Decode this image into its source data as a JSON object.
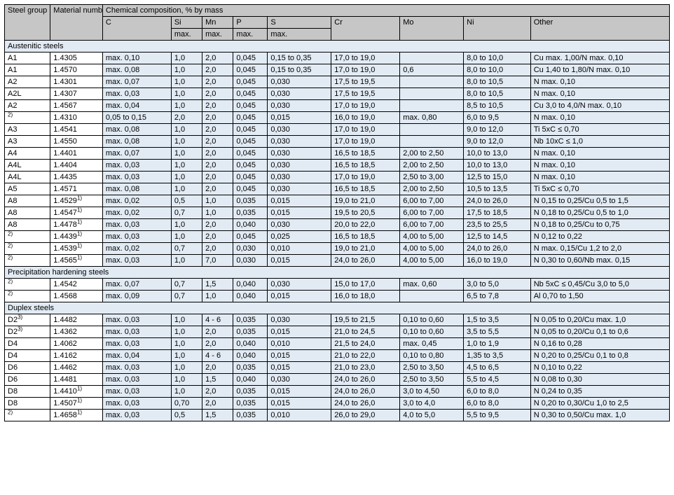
{
  "colors": {
    "header_bg": "#c6c6c6",
    "shade_bg": "#e2ebf4",
    "border": "#000000",
    "text": "#000000"
  },
  "header": {
    "steel_group": "Steel group",
    "material_number": "Material number",
    "chem_span": "Chemical composition, % by mass",
    "cols": [
      "C",
      "Si",
      "Mn",
      "P",
      "S",
      "Cr",
      "Mo",
      "Ni",
      "Other"
    ],
    "max": "max."
  },
  "sections": [
    {
      "title": "Austenitic steels",
      "rows": [
        {
          "grp": "A1",
          "grp_sup": "",
          "mat": "1.4305",
          "mat_sup": "",
          "c": "max. 0,10",
          "si": "1,0",
          "mn": "2,0",
          "p": "0,045",
          "s": "0,15 to 0,35",
          "cr": "17,0 to 19,0",
          "mo": "",
          "ni": "8,0 to 10,0",
          "other": "Cu max. 1,00/N max. 0,10"
        },
        {
          "grp": "A1",
          "grp_sup": "",
          "mat": "1.4570",
          "mat_sup": "",
          "c": "max. 0,08",
          "si": "1,0",
          "mn": "2,0",
          "p": "0,045",
          "s": "0,15 to 0,35",
          "cr": "17,0 to 19,0",
          "mo": "0,6",
          "ni": "8,0 to 10,0",
          "other": "Cu 1,40 to 1,80/N max. 0,10"
        },
        {
          "grp": "A2",
          "grp_sup": "",
          "mat": "1.4301",
          "mat_sup": "",
          "c": "max. 0,07",
          "si": "1,0",
          "mn": "2,0",
          "p": "0,045",
          "s": "0,030",
          "cr": "17,5 to 19,5",
          "mo": "",
          "ni": "8,0 to 10,5",
          "other": "N max. 0,10"
        },
        {
          "grp": "A2L",
          "grp_sup": "",
          "mat": "1.4307",
          "mat_sup": "",
          "c": "max. 0,03",
          "si": "1,0",
          "mn": "2,0",
          "p": "0,045",
          "s": "0,030",
          "cr": "17,5 to 19,5",
          "mo": "",
          "ni": "8,0 to 10,5",
          "other": "N max. 0,10"
        },
        {
          "grp": "A2",
          "grp_sup": "",
          "mat": "1.4567",
          "mat_sup": "",
          "c": "max. 0,04",
          "si": "1,0",
          "mn": "2,0",
          "p": "0,045",
          "s": "0,030",
          "cr": "17,0 to 19,0",
          "mo": "",
          "ni": "8,5 to 10,5",
          "other": "Cu 3,0 to 4,0/N max. 0,10"
        },
        {
          "grp": "",
          "grp_sup": "2)",
          "mat": "1.4310",
          "mat_sup": "",
          "c": "0,05 to 0,15",
          "si": "2,0",
          "mn": "2,0",
          "p": "0,045",
          "s": "0,015",
          "cr": "16,0 to 19,0",
          "mo": "max. 0,80",
          "ni": "6,0 to 9,5",
          "other": "N max. 0,10"
        },
        {
          "grp": "A3",
          "grp_sup": "",
          "mat": "1.4541",
          "mat_sup": "",
          "c": "max. 0,08",
          "si": "1,0",
          "mn": "2,0",
          "p": "0,045",
          "s": "0,030",
          "cr": "17,0 to 19,0",
          "mo": "",
          "ni": "9,0 to 12,0",
          "other": "Ti 5xC ≤ 0,70"
        },
        {
          "grp": "A3",
          "grp_sup": "",
          "mat": "1.4550",
          "mat_sup": "",
          "c": "max. 0,08",
          "si": "1,0",
          "mn": "2,0",
          "p": "0,045",
          "s": "0,030",
          "cr": "17,0 to 19,0",
          "mo": "",
          "ni": "9,0 to 12,0",
          "other": "Nb 10xC ≤ 1,0"
        },
        {
          "grp": "A4",
          "grp_sup": "",
          "mat": "1.4401",
          "mat_sup": "",
          "c": "max. 0,07",
          "si": "1,0",
          "mn": "2,0",
          "p": "0,045",
          "s": "0,030",
          "cr": "16,5 to 18,5",
          "mo": "2,00 to 2,50",
          "ni": "10,0 to 13,0",
          "other": "N max. 0,10"
        },
        {
          "grp": "A4L",
          "grp_sup": "",
          "mat": "1.4404",
          "mat_sup": "",
          "c": "max. 0,03",
          "si": "1,0",
          "mn": "2,0",
          "p": "0,045",
          "s": "0,030",
          "cr": "16,5 to 18,5",
          "mo": "2,00 to 2,50",
          "ni": "10,0 to 13,0",
          "other": "N max. 0,10"
        },
        {
          "grp": "A4L",
          "grp_sup": "",
          "mat": "1.4435",
          "mat_sup": "",
          "c": "max. 0,03",
          "si": "1,0",
          "mn": "2,0",
          "p": "0,045",
          "s": "0,030",
          "cr": "17,0 to 19,0",
          "mo": "2,50 to 3,00",
          "ni": "12,5 to 15,0",
          "other": "N max. 0,10"
        },
        {
          "grp": "A5",
          "grp_sup": "",
          "mat": "1.4571",
          "mat_sup": "",
          "c": "max. 0,08",
          "si": "1,0",
          "mn": "2,0",
          "p": "0,045",
          "s": "0,030",
          "cr": "16,5 to 18,5",
          "mo": "2,00 to 2,50",
          "ni": "10,5 to 13,5",
          "other": "Ti 5xC ≤ 0,70"
        },
        {
          "grp": "A8",
          "grp_sup": "",
          "mat": "1.4529",
          "mat_sup": "1)",
          "c": "max. 0,02",
          "si": "0,5",
          "mn": "1,0",
          "p": "0,035",
          "s": "0,015",
          "cr": "19,0 to 21,0",
          "mo": "6,00 to 7,00",
          "ni": "24,0 to 26,0",
          "other": "N 0,15 to 0,25/Cu 0,5 to 1,5"
        },
        {
          "grp": "A8",
          "grp_sup": "",
          "mat": "1.4547",
          "mat_sup": "1)",
          "c": "max. 0,02",
          "si": "0,7",
          "mn": "1,0",
          "p": "0,035",
          "s": "0,015",
          "cr": "19,5 to 20,5",
          "mo": "6,00 to 7,00",
          "ni": "17,5 to 18,5",
          "other": "N 0,18 to 0,25/Cu 0,5 to 1,0"
        },
        {
          "grp": "A8",
          "grp_sup": "",
          "mat": "1.4478",
          "mat_sup": "1)",
          "c": "max. 0,03",
          "si": "1,0",
          "mn": "2,0",
          "p": "0,040",
          "s": "0,030",
          "cr": "20,0 to 22,0",
          "mo": "6,00 to 7,00",
          "ni": "23,5 to 25,5",
          "other": "N 0,18 to 0,25/Cu to 0,75"
        },
        {
          "grp": "",
          "grp_sup": "2)",
          "mat": "1.4439",
          "mat_sup": "1)",
          "c": "max. 0,03",
          "si": "1,0",
          "mn": "2,0",
          "p": "0,045",
          "s": "0,025",
          "cr": "16,5 to 18,5",
          "mo": "4,00 to 5,00",
          "ni": "12,5 to 14,5",
          "other": "N 0,12 to 0,22"
        },
        {
          "grp": "",
          "grp_sup": "2)",
          "mat": "1.4539",
          "mat_sup": "1)",
          "c": "max. 0,02",
          "si": "0,7",
          "mn": "2,0",
          "p": "0,030",
          "s": "0,010",
          "cr": "19,0 to 21,0",
          "mo": "4,00 to 5,00",
          "ni": "24,0 to 26,0",
          "other": "N max. 0,15/Cu 1,2 to 2,0"
        },
        {
          "grp": "",
          "grp_sup": "2)",
          "mat": "1.4565",
          "mat_sup": "1)",
          "c": "max. 0,03",
          "si": "1,0",
          "mn": "7,0",
          "p": "0,030",
          "s": "0,015",
          "cr": "24,0 to 26,0",
          "mo": "4,00 to 5,00",
          "ni": "16,0 to 19,0",
          "other": "N 0,30 to 0,60/Nb max. 0,15"
        }
      ]
    },
    {
      "title": "Precipitation hardening steels",
      "rows": [
        {
          "grp": "",
          "grp_sup": "2)",
          "mat": "1.4542",
          "mat_sup": "",
          "c": "max. 0,07",
          "si": "0,7",
          "mn": "1,5",
          "p": "0,040",
          "s": "0,030",
          "cr": "15,0 to 17,0",
          "mo": "max. 0,60",
          "ni": "3,0 to 5,0",
          "other": "Nb 5xC ≤ 0,45/Cu 3,0 to 5,0"
        },
        {
          "grp": "",
          "grp_sup": "2)",
          "mat": "1.4568",
          "mat_sup": "",
          "c": "max. 0,09",
          "si": "0,7",
          "mn": "1,0",
          "p": "0,040",
          "s": "0,015",
          "cr": "16,0 to 18,0",
          "mo": "",
          "ni": "6,5 to 7,8",
          "other": "Al 0,70 to 1,50"
        }
      ]
    },
    {
      "title": "Duplex steels",
      "rows": [
        {
          "grp": "D2",
          "grp_sup": "3)",
          "mat": "1.4482",
          "mat_sup": "",
          "c": "max. 0,03",
          "si": "1,0",
          "mn": "4 - 6",
          "p": "0,035",
          "s": "0,030",
          "cr": "19,5 to 21,5",
          "mo": "0,10 to 0,60",
          "ni": "1,5 to 3,5",
          "other": "N 0,05 to 0,20/Cu max. 1,0"
        },
        {
          "grp": "D2",
          "grp_sup": "3)",
          "mat": "1.4362",
          "mat_sup": "",
          "c": "max. 0,03",
          "si": "1,0",
          "mn": "2,0",
          "p": "0,035",
          "s": "0,015",
          "cr": "21,0 to 24,5",
          "mo": "0,10 to 0,60",
          "ni": "3,5 to 5,5",
          "other": "N 0,05 to 0,20/Cu 0,1 to 0,6"
        },
        {
          "grp": "D4",
          "grp_sup": "",
          "mat": "1.4062",
          "mat_sup": "",
          "c": "max. 0,03",
          "si": "1,0",
          "mn": "2,0",
          "p": "0,040",
          "s": "0,010",
          "cr": "21,5 to 24,0",
          "mo": "max. 0,45",
          "ni": "1,0 to 1,9",
          "other": "N 0,16 to 0,28"
        },
        {
          "grp": "D4",
          "grp_sup": "",
          "mat": "1.4162",
          "mat_sup": "",
          "c": "max. 0,04",
          "si": "1,0",
          "mn": "4 - 6",
          "p": "0,040",
          "s": "0,015",
          "cr": "21,0 to 22,0",
          "mo": "0,10 to 0,80",
          "ni": "1,35 to 3,5",
          "other": "N 0,20 to 0,25/Cu 0,1 to 0,8"
        },
        {
          "grp": "D6",
          "grp_sup": "",
          "mat": "1.4462",
          "mat_sup": "",
          "c": "max. 0,03",
          "si": "1,0",
          "mn": "2,0",
          "p": "0,035",
          "s": "0,015",
          "cr": "21,0 to 23,0",
          "mo": "2,50 to 3,50",
          "ni": "4,5 to 6,5",
          "other": "N 0,10 to 0,22"
        },
        {
          "grp": "D6",
          "grp_sup": "",
          "mat": "1.4481",
          "mat_sup": "",
          "c": "max. 0,03",
          "si": "1,0",
          "mn": "1,5",
          "p": "0,040",
          "s": "0,030",
          "cr": "24,0 to 26,0",
          "mo": "2,50 to 3,50",
          "ni": "5,5 to 4,5",
          "other": "N 0,08 to 0,30"
        },
        {
          "grp": "D8",
          "grp_sup": "",
          "mat": "1.4410",
          "mat_sup": "1)",
          "c": "max. 0,03",
          "si": "1,0",
          "mn": "2,0",
          "p": "0,035",
          "s": "0,015",
          "cr": "24,0 to 26,0",
          "mo": "3,0 to 4,50",
          "ni": "6,0 to 8,0",
          "other": "N 0,24 to 0,35"
        },
        {
          "grp": "D8",
          "grp_sup": "",
          "mat": "1.4507",
          "mat_sup": "1)",
          "c": "max. 0,03",
          "si": "0,70",
          "mn": "2,0",
          "p": "0,035",
          "s": "0,015",
          "cr": "24,0 to 26,0",
          "mo": "3,0 to 4,0",
          "ni": "6,0 to 8,0",
          "other": "N 0,20 to 0,30/Cu 1,0 to 2,5"
        },
        {
          "grp": "",
          "grp_sup": "2)",
          "mat": "1.4658",
          "mat_sup": "1)",
          "c": "max. 0,03",
          "si": "0,5",
          "mn": "1,5",
          "p": "0,035",
          "s": "0,010",
          "cr": "26,0 to 29,0",
          "mo": "4,0 to 5,0",
          "ni": "5,5 to 9,5",
          "other": "N 0,30 to 0,50/Cu max. 1,0"
        }
      ]
    }
  ]
}
